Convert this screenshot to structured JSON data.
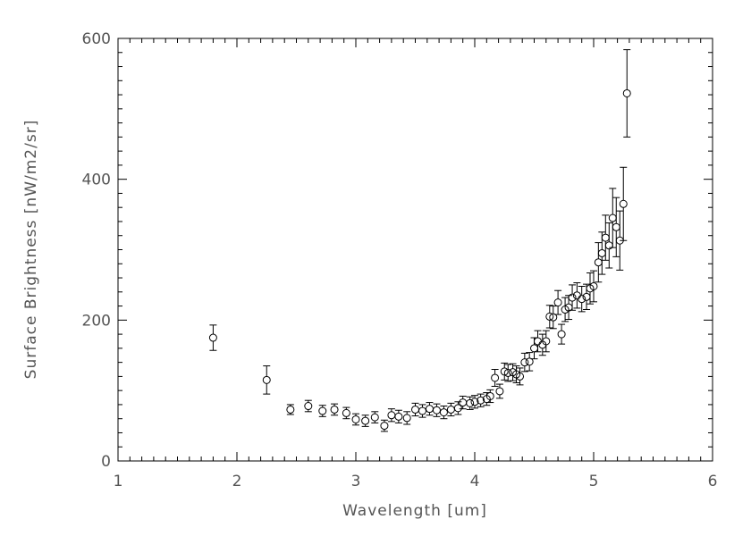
{
  "chart_data": {
    "type": "scatter",
    "xlabel": "Wavelength [um]",
    "ylabel": "Surface Brightness [nW/m2/sr]",
    "xlim": [
      1,
      6
    ],
    "ylim": [
      0,
      600
    ],
    "x_ticks": [
      1,
      2,
      3,
      4,
      5,
      6
    ],
    "y_ticks": [
      0,
      200,
      400,
      600
    ],
    "x_minor_step": 0.1,
    "y_minor_step": 20,
    "grid": false,
    "marker": "open-circle",
    "series": [
      {
        "x": [
          1.8,
          2.25,
          2.45,
          2.6,
          2.72,
          2.82,
          2.92,
          3.0,
          3.08,
          3.16,
          3.24,
          3.3,
          3.36,
          3.43,
          3.5,
          3.56,
          3.62,
          3.68,
          3.74,
          3.8,
          3.86,
          3.9,
          3.96,
          4.0,
          4.05,
          4.1,
          4.13,
          4.17,
          4.21,
          4.25,
          4.28,
          4.32,
          4.35,
          4.38,
          4.42,
          4.46,
          4.5,
          4.53,
          4.57,
          4.6,
          4.63,
          4.66,
          4.7,
          4.73,
          4.76,
          4.79,
          4.82,
          4.86,
          4.9,
          4.94,
          4.97,
          5.0,
          5.04,
          5.07,
          5.1,
          5.13,
          5.16,
          5.19,
          5.22,
          5.25,
          5.28
        ],
        "y": [
          175,
          115,
          73,
          78,
          71,
          73,
          68,
          59,
          57,
          62,
          50,
          65,
          63,
          61,
          73,
          71,
          74,
          72,
          69,
          73,
          75,
          83,
          82,
          84,
          86,
          88,
          92,
          118,
          99,
          127,
          125,
          126,
          123,
          120,
          140,
          141,
          160,
          170,
          165,
          170,
          205,
          204,
          225,
          180,
          215,
          218,
          232,
          235,
          230,
          233,
          245,
          248,
          282,
          295,
          317,
          306,
          345,
          332,
          313,
          365,
          522
        ],
        "err": [
          18,
          20,
          7,
          8,
          8,
          8,
          8,
          8,
          8,
          8,
          8,
          9,
          9,
          9,
          9,
          9,
          9,
          9,
          9,
          9,
          9,
          9,
          9,
          9,
          9,
          9,
          9,
          12,
          10,
          12,
          12,
          12,
          12,
          12,
          13,
          13,
          15,
          15,
          15,
          15,
          16,
          16,
          17,
          14,
          17,
          17,
          18,
          18,
          18,
          18,
          22,
          22,
          28,
          30,
          32,
          32,
          42,
          42,
          42,
          52,
          62
        ]
      }
    ]
  }
}
